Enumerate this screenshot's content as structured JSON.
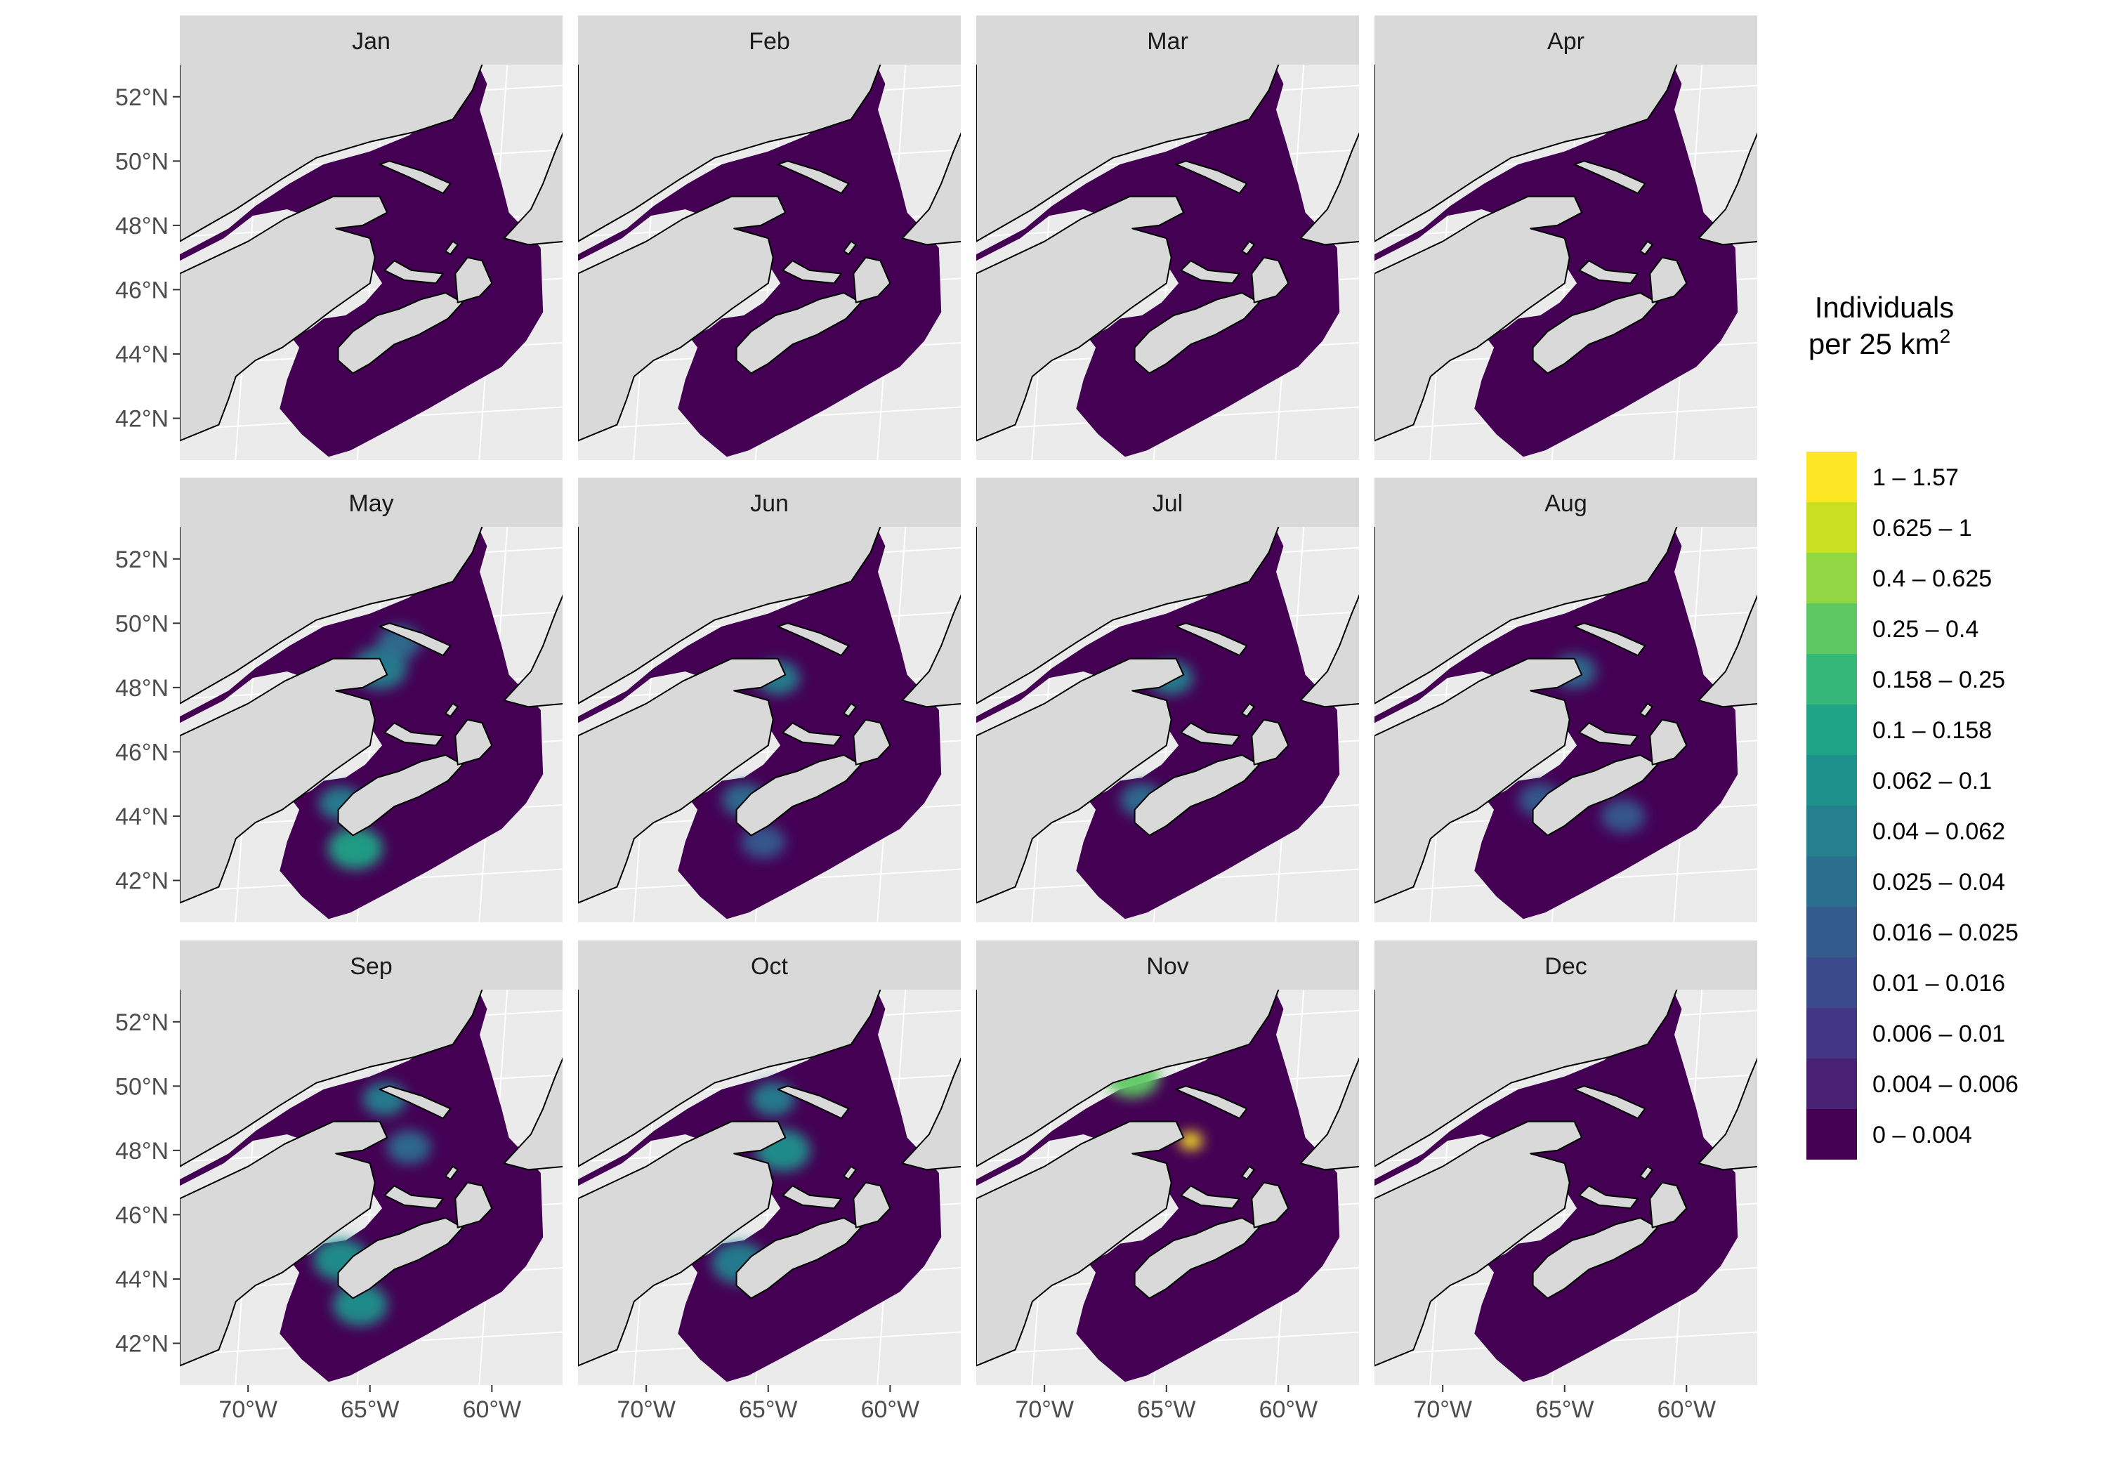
{
  "legend": {
    "title_line1": "Individuals",
    "title_line2_pre": "per 25 km",
    "title_line2_sup": "2",
    "bins": [
      {
        "label": "1 – 1.57",
        "color": "#fde725"
      },
      {
        "label": "0.625 – 1",
        "color": "#c8e020"
      },
      {
        "label": "0.4 – 0.625",
        "color": "#90d743"
      },
      {
        "label": "0.25 – 0.4",
        "color": "#5ec962"
      },
      {
        "label": "0.158 – 0.25",
        "color": "#35b779"
      },
      {
        "label": "0.1 – 0.158",
        "color": "#20a486"
      },
      {
        "label": "0.062 – 0.1",
        "color": "#1f918c"
      },
      {
        "label": "0.04 – 0.062",
        "color": "#25808e"
      },
      {
        "label": "0.025 – 0.04",
        "color": "#2c6e8e"
      },
      {
        "label": "0.016 – 0.025",
        "color": "#335b8c"
      },
      {
        "label": "0.01 – 0.016",
        "color": "#3b4a8b"
      },
      {
        "label": "0.006 – 0.01",
        "color": "#433685"
      },
      {
        "label": "0.004 – 0.006",
        "color": "#482173"
      },
      {
        "label": "0 – 0.004",
        "color": "#440154"
      }
    ]
  },
  "axes": {
    "lat_labels": [
      "52°N",
      "50°N",
      "48°N",
      "46°N",
      "44°N",
      "42°N"
    ],
    "lon_labels": [
      "70°W",
      "65°W",
      "60°W"
    ]
  },
  "colors": {
    "panel_bg": "#ebebeb",
    "strip_bg": "#d9d9d9",
    "land": "#d9d9d9",
    "base": "#440154"
  },
  "panels": [
    {
      "month": "Jan",
      "hotspots": []
    },
    {
      "month": "Feb",
      "hotspots": []
    },
    {
      "month": "Mar",
      "hotspots": []
    },
    {
      "month": "Apr",
      "hotspots": []
    },
    {
      "month": "May",
      "hotspots": [
        {
          "lon": -64.6,
          "lat": 48.6,
          "value": 0.06
        },
        {
          "lon": -66.2,
          "lat": 44.4,
          "value": 0.05
        },
        {
          "lon": -65.6,
          "lat": 43.0,
          "value": 0.1
        },
        {
          "lon": -63.8,
          "lat": 49.4,
          "value": 0.03
        }
      ]
    },
    {
      "month": "Jun",
      "hotspots": [
        {
          "lon": -64.6,
          "lat": 48.3,
          "value": 0.04
        },
        {
          "lon": -66.0,
          "lat": 44.5,
          "value": 0.03
        },
        {
          "lon": -65.2,
          "lat": 43.2,
          "value": 0.02
        }
      ]
    },
    {
      "month": "Jul",
      "hotspots": [
        {
          "lon": -64.8,
          "lat": 48.3,
          "value": 0.04
        },
        {
          "lon": -66.0,
          "lat": 44.5,
          "value": 0.025
        }
      ]
    },
    {
      "month": "Aug",
      "hotspots": [
        {
          "lon": -64.6,
          "lat": 48.5,
          "value": 0.03
        },
        {
          "lon": -66.0,
          "lat": 44.5,
          "value": 0.02
        },
        {
          "lon": -62.6,
          "lat": 44.0,
          "value": 0.02
        }
      ]
    },
    {
      "month": "Sep",
      "hotspots": [
        {
          "lon": -66.2,
          "lat": 44.6,
          "value": 0.07
        },
        {
          "lon": -65.4,
          "lat": 43.2,
          "value": 0.08
        },
        {
          "lon": -64.4,
          "lat": 49.6,
          "value": 0.05
        },
        {
          "lon": -63.4,
          "lat": 48.1,
          "value": 0.03
        }
      ]
    },
    {
      "month": "Oct",
      "hotspots": [
        {
          "lon": -64.4,
          "lat": 48.0,
          "value": 0.07
        },
        {
          "lon": -64.8,
          "lat": 49.6,
          "value": 0.05
        },
        {
          "lon": -66.2,
          "lat": 44.5,
          "value": 0.06
        }
      ]
    },
    {
      "month": "Nov",
      "hotspots": [
        {
          "lon": -64.0,
          "lat": 48.3,
          "value": 1.2
        },
        {
          "lon": -66.4,
          "lat": 50.3,
          "value": 0.3
        }
      ]
    },
    {
      "month": "Dec",
      "hotspots": []
    }
  ]
}
